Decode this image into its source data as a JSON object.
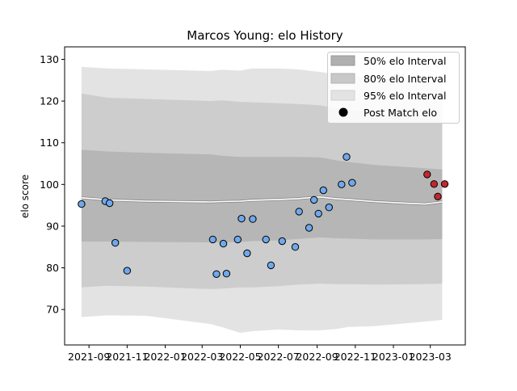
{
  "chart_data": {
    "type": "scatter",
    "title": "Marcos Young: elo History",
    "xlabel": "",
    "ylabel": "elo score",
    "xlim": [
      "2021-07-24",
      "2023-04-26"
    ],
    "ylim": [
      61.5,
      133
    ],
    "yticks": [
      70,
      80,
      90,
      100,
      110,
      120,
      130
    ],
    "xticks": [
      "2021-09",
      "2021-11",
      "2022-01",
      "2022-03",
      "2022-05",
      "2022-07",
      "2022-09",
      "2022-11",
      "2023-01",
      "2023-03"
    ],
    "xtick_labels": [
      "2021-09",
      "2021-11",
      "2022-01",
      "2022-03",
      "2022-05",
      "2022-07",
      "2022-09",
      "2022-11",
      "2023-01",
      "2023-03"
    ],
    "grid": false,
    "legend": {
      "placement": "top-right",
      "entries": [
        {
          "label": "50% elo Interval",
          "color": "#b0b0b0"
        },
        {
          "label": "80% elo Interval",
          "color": "#c8c8c8"
        },
        {
          "label": "95% elo Interval",
          "color": "#e3e3e3"
        },
        {
          "label": "Post Match elo",
          "color": "#000000"
        }
      ]
    },
    "bands": {
      "x": [
        "2021-08-20",
        "2021-10-01",
        "2021-12-01",
        "2022-03-15",
        "2022-04-01",
        "2022-05-01",
        "2022-05-20",
        "2022-07-01",
        "2022-08-01",
        "2022-09-05",
        "2022-10-01",
        "2022-10-20",
        "2022-12-01",
        "2023-02-20",
        "2023-03-20"
      ],
      "mean": [
        96.8,
        96.3,
        96.0,
        95.8,
        95.9,
        96.0,
        96.2,
        96.4,
        96.6,
        97.0,
        96.6,
        96.4,
        95.9,
        95.3,
        95.8
      ],
      "p50_lo": [
        86.3,
        86.3,
        86.2,
        86.1,
        86.1,
        86.2,
        86.4,
        86.6,
        86.9,
        87.3,
        87.1,
        87.0,
        86.8,
        86.8,
        86.9
      ],
      "p50_hi": [
        108.3,
        107.9,
        107.6,
        107.2,
        106.9,
        106.6,
        106.6,
        106.6,
        106.6,
        106.5,
        105.8,
        105.4,
        104.7,
        103.9,
        103.6
      ],
      "p80_lo": [
        75.3,
        75.7,
        75.5,
        74.9,
        75.0,
        75.3,
        75.3,
        75.6,
        76.0,
        76.2,
        76.1,
        76.1,
        76.0,
        76.1,
        76.2
      ],
      "p80_hi": [
        121.8,
        120.8,
        120.5,
        120.0,
        120.2,
        119.8,
        119.7,
        119.5,
        119.3,
        119.0,
        118.3,
        117.9,
        117.2,
        115.9,
        115.3
      ],
      "p95_lo": [
        68.2,
        68.6,
        68.5,
        66.5,
        65.8,
        64.4,
        64.8,
        65.2,
        65.0,
        65.0,
        65.3,
        65.8,
        66.0,
        67.1,
        67.5
      ],
      "p95_hi": [
        128.2,
        127.8,
        127.6,
        127.2,
        127.5,
        127.3,
        127.8,
        127.8,
        127.6,
        127.0,
        126.4,
        126.0,
        125.5,
        124.5,
        124.2
      ]
    },
    "points": [
      {
        "x": "2021-08-20",
        "y": 95.3,
        "group": "history"
      },
      {
        "x": "2021-09-27",
        "y": 96.0,
        "group": "history"
      },
      {
        "x": "2021-10-04",
        "y": 95.5,
        "group": "history"
      },
      {
        "x": "2021-10-13",
        "y": 86.0,
        "group": "history"
      },
      {
        "x": "2021-11-01",
        "y": 79.3,
        "group": "history"
      },
      {
        "x": "2022-03-18",
        "y": 86.8,
        "group": "history"
      },
      {
        "x": "2022-03-24",
        "y": 78.5,
        "group": "history"
      },
      {
        "x": "2022-04-04",
        "y": 85.8,
        "group": "history"
      },
      {
        "x": "2022-04-09",
        "y": 78.6,
        "group": "history"
      },
      {
        "x": "2022-04-27",
        "y": 86.8,
        "group": "history"
      },
      {
        "x": "2022-05-03",
        "y": 91.8,
        "group": "history"
      },
      {
        "x": "2022-05-12",
        "y": 83.5,
        "group": "history"
      },
      {
        "x": "2022-05-21",
        "y": 91.7,
        "group": "history"
      },
      {
        "x": "2022-06-11",
        "y": 86.8,
        "group": "history"
      },
      {
        "x": "2022-06-19",
        "y": 80.6,
        "group": "history"
      },
      {
        "x": "2022-07-07",
        "y": 86.4,
        "group": "history"
      },
      {
        "x": "2022-07-28",
        "y": 85.0,
        "group": "history"
      },
      {
        "x": "2022-08-03",
        "y": 93.5,
        "group": "history"
      },
      {
        "x": "2022-08-19",
        "y": 89.6,
        "group": "history"
      },
      {
        "x": "2022-08-27",
        "y": 96.3,
        "group": "history"
      },
      {
        "x": "2022-09-03",
        "y": 93.0,
        "group": "history"
      },
      {
        "x": "2022-09-11",
        "y": 98.6,
        "group": "history"
      },
      {
        "x": "2022-09-20",
        "y": 94.5,
        "group": "history"
      },
      {
        "x": "2022-10-10",
        "y": 100.0,
        "group": "history"
      },
      {
        "x": "2022-10-18",
        "y": 106.6,
        "group": "history"
      },
      {
        "x": "2022-10-27",
        "y": 100.4,
        "group": "history"
      },
      {
        "x": "2023-02-24",
        "y": 102.4,
        "group": "recent"
      },
      {
        "x": "2023-03-07",
        "y": 100.1,
        "group": "recent"
      },
      {
        "x": "2023-03-13",
        "y": 97.1,
        "group": "recent"
      },
      {
        "x": "2023-03-24",
        "y": 100.1,
        "group": "recent"
      }
    ],
    "colors": {
      "p95": "#e3e3e3",
      "p80": "#cdcdcd",
      "p50": "#b6b6b6",
      "mean_line": "#ffffff",
      "history_point": "#6fa8ec",
      "recent_point": "#c0282d",
      "point_edge": "#000000"
    }
  }
}
